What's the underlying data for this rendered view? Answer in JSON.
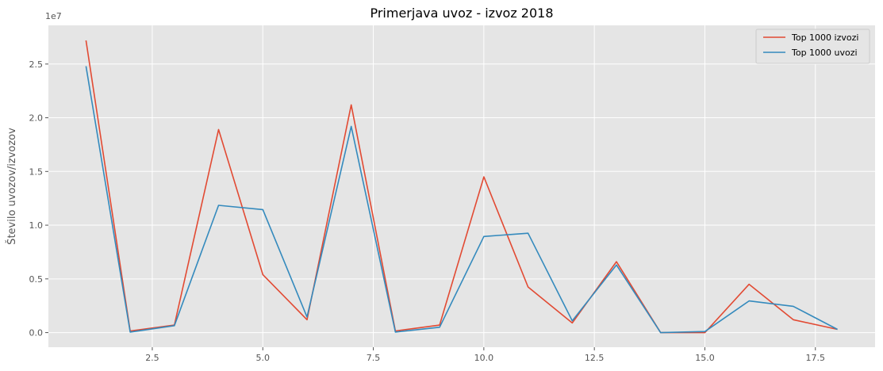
{
  "chart_data": {
    "type": "line",
    "title": "Primerjava uvoz - izvoz 2018",
    "xlabel": "",
    "ylabel": "Število uvozov/izvozov",
    "y_offset_label": "1e7",
    "xlim": [
      0.15,
      18.85
    ],
    "ylim": [
      -0.136,
      2.86
    ],
    "xticks": [
      2.5,
      5.0,
      7.5,
      10.0,
      12.5,
      15.0,
      17.5
    ],
    "xtick_labels": [
      "2.5",
      "5.0",
      "7.5",
      "10.0",
      "12.5",
      "15.0",
      "17.5"
    ],
    "yticks": [
      0.0,
      0.5,
      1.0,
      1.5,
      2.0,
      2.5
    ],
    "ytick_labels": [
      "0.0",
      "0.5",
      "1.0",
      "1.5",
      "2.0",
      "2.5"
    ],
    "grid": true,
    "legend_position": "top-right",
    "x": [
      1,
      2,
      3,
      4,
      5,
      6,
      7,
      8,
      9,
      10,
      11,
      12,
      13,
      14,
      15,
      16,
      17,
      18
    ],
    "series": [
      {
        "name": "Top 1000 izvozi",
        "color": "#E24A33",
        "values": [
          2.72,
          0.015,
          0.07,
          1.89,
          0.54,
          0.12,
          2.12,
          0.015,
          0.07,
          1.45,
          0.425,
          0.09,
          0.66,
          0.0,
          0.0,
          0.45,
          0.12,
          0.03
        ]
      },
      {
        "name": "Top 1000 uvozi",
        "color": "#348ABD",
        "values": [
          2.48,
          0.005,
          0.065,
          1.185,
          1.145,
          0.145,
          1.92,
          0.005,
          0.05,
          0.895,
          0.925,
          0.11,
          0.63,
          0.0,
          0.01,
          0.295,
          0.245,
          0.03
        ]
      }
    ]
  }
}
